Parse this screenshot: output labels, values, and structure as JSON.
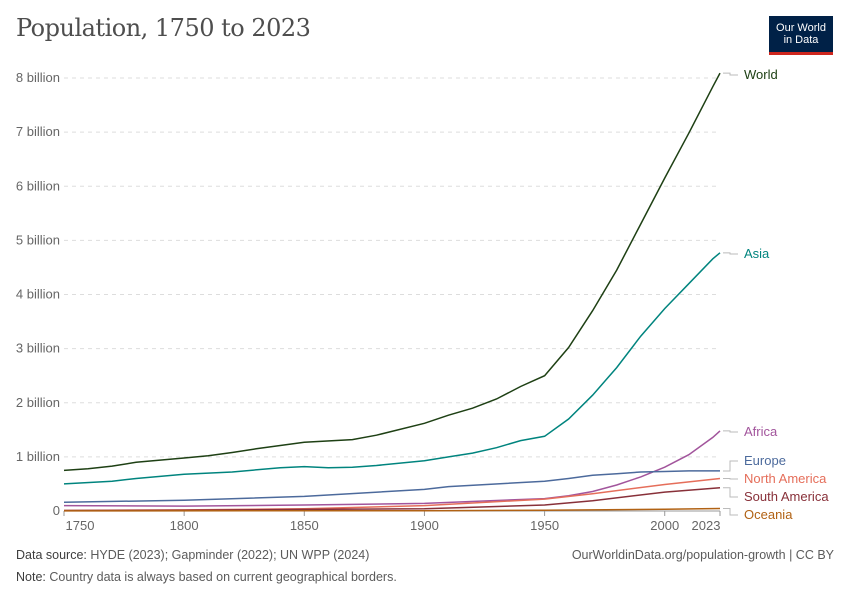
{
  "title": "Population, 1750 to 2023",
  "logo": {
    "line1": "Our World",
    "line2": "in Data"
  },
  "footer": {
    "source_label": "Data source:",
    "source_text": "HYDE (2023); Gapminder (2022); UN WPP (2024)",
    "note_label": "Note:",
    "note_text": "Country data is always based on current geographical borders.",
    "url": "OurWorldinData.org/population-growth | CC BY"
  },
  "chart_data": {
    "type": "line",
    "title": "Population, 1750 to 2023",
    "xlabel": "",
    "ylabel": "",
    "xlim": [
      1750,
      2023
    ],
    "ylim": [
      0,
      8
    ],
    "x_ticks": [
      {
        "v": 1750,
        "label": "1750"
      },
      {
        "v": 1800,
        "label": "1800"
      },
      {
        "v": 1850,
        "label": "1850"
      },
      {
        "v": 1900,
        "label": "1900"
      },
      {
        "v": 1950,
        "label": "1950"
      },
      {
        "v": 2000,
        "label": "2000"
      },
      {
        "v": 2023,
        "label": "2023"
      }
    ],
    "y_ticks": [
      {
        "v": 0,
        "label": "0"
      },
      {
        "v": 1,
        "label": "1 billion"
      },
      {
        "v": 2,
        "label": "2 billion"
      },
      {
        "v": 3,
        "label": "3 billion"
      },
      {
        "v": 4,
        "label": "4 billion"
      },
      {
        "v": 5,
        "label": "5 billion"
      },
      {
        "v": 6,
        "label": "6 billion"
      },
      {
        "v": 7,
        "label": "7 billion"
      },
      {
        "v": 8,
        "label": "8 billion"
      }
    ],
    "grid": true,
    "legend": "right (line-end labels)",
    "units": "billion",
    "series": [
      {
        "name": "World",
        "color": "#1e4014",
        "points": [
          [
            1750,
            0.75
          ],
          [
            1760,
            0.78
          ],
          [
            1770,
            0.83
          ],
          [
            1780,
            0.9
          ],
          [
            1800,
            0.98
          ],
          [
            1810,
            1.02
          ],
          [
            1820,
            1.08
          ],
          [
            1830,
            1.15
          ],
          [
            1850,
            1.27
          ],
          [
            1870,
            1.32
          ],
          [
            1880,
            1.4
          ],
          [
            1900,
            1.62
          ],
          [
            1910,
            1.77
          ],
          [
            1920,
            1.9
          ],
          [
            1930,
            2.07
          ],
          [
            1940,
            2.3
          ],
          [
            1950,
            2.5
          ],
          [
            1960,
            3.02
          ],
          [
            1970,
            3.7
          ],
          [
            1980,
            4.45
          ],
          [
            1990,
            5.3
          ],
          [
            2000,
            6.15
          ],
          [
            2010,
            6.98
          ],
          [
            2020,
            7.84
          ],
          [
            2023,
            8.09
          ]
        ]
      },
      {
        "name": "Asia",
        "color": "#00847e",
        "points": [
          [
            1750,
            0.5
          ],
          [
            1770,
            0.55
          ],
          [
            1780,
            0.6
          ],
          [
            1800,
            0.68
          ],
          [
            1820,
            0.72
          ],
          [
            1840,
            0.8
          ],
          [
            1850,
            0.82
          ],
          [
            1860,
            0.8
          ],
          [
            1870,
            0.81
          ],
          [
            1880,
            0.84
          ],
          [
            1900,
            0.93
          ],
          [
            1910,
            1.0
          ],
          [
            1920,
            1.07
          ],
          [
            1930,
            1.17
          ],
          [
            1940,
            1.3
          ],
          [
            1950,
            1.38
          ],
          [
            1960,
            1.7
          ],
          [
            1970,
            2.14
          ],
          [
            1980,
            2.65
          ],
          [
            1990,
            3.23
          ],
          [
            2000,
            3.74
          ],
          [
            2010,
            4.2
          ],
          [
            2020,
            4.66
          ],
          [
            2023,
            4.77
          ]
        ]
      },
      {
        "name": "Africa",
        "color": "#a2559c",
        "points": [
          [
            1750,
            0.1
          ],
          [
            1800,
            0.09
          ],
          [
            1850,
            0.11
          ],
          [
            1900,
            0.14
          ],
          [
            1950,
            0.23
          ],
          [
            1960,
            0.28
          ],
          [
            1970,
            0.36
          ],
          [
            1980,
            0.48
          ],
          [
            1990,
            0.63
          ],
          [
            2000,
            0.81
          ],
          [
            2010,
            1.04
          ],
          [
            2020,
            1.36
          ],
          [
            2023,
            1.48
          ]
        ]
      },
      {
        "name": "Europe",
        "color": "#4c6a9c",
        "points": [
          [
            1750,
            0.16
          ],
          [
            1800,
            0.2
          ],
          [
            1850,
            0.27
          ],
          [
            1900,
            0.4
          ],
          [
            1910,
            0.45
          ],
          [
            1950,
            0.55
          ],
          [
            1960,
            0.6
          ],
          [
            1970,
            0.66
          ],
          [
            1980,
            0.69
          ],
          [
            1990,
            0.72
          ],
          [
            2000,
            0.73
          ],
          [
            2010,
            0.74
          ],
          [
            2023,
            0.74
          ]
        ]
      },
      {
        "name": "North America",
        "color": "#e56e5a",
        "points": [
          [
            1750,
            0.01
          ],
          [
            1800,
            0.02
          ],
          [
            1850,
            0.04
          ],
          [
            1900,
            0.1
          ],
          [
            1950,
            0.22
          ],
          [
            1970,
            0.32
          ],
          [
            2000,
            0.49
          ],
          [
            2023,
            0.6
          ]
        ]
      },
      {
        "name": "South America",
        "color": "#883039",
        "points": [
          [
            1750,
            0.01
          ],
          [
            1800,
            0.015
          ],
          [
            1850,
            0.03
          ],
          [
            1900,
            0.04
          ],
          [
            1950,
            0.11
          ],
          [
            1970,
            0.19
          ],
          [
            2000,
            0.35
          ],
          [
            2023,
            0.43
          ]
        ]
      },
      {
        "name": "Oceania",
        "color": "#b16214",
        "points": [
          [
            1750,
            0.002
          ],
          [
            1900,
            0.006
          ],
          [
            1950,
            0.013
          ],
          [
            2000,
            0.031
          ],
          [
            2023,
            0.046
          ]
        ]
      }
    ]
  }
}
